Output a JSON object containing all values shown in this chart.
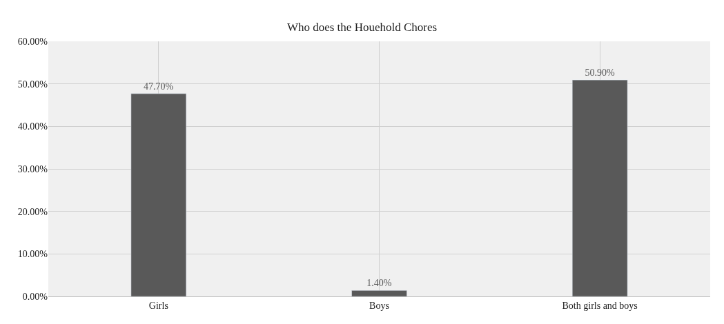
{
  "chart_data": {
    "type": "bar",
    "title": "Who does the Houehold Chores",
    "categories": [
      "Girls",
      "Boys",
      "Both girls and boys"
    ],
    "values": [
      47.7,
      1.4,
      50.9
    ],
    "value_labels": [
      "47.70%",
      "1.40%",
      "50.90%"
    ],
    "color": "#595959",
    "ylim": [
      0,
      60
    ],
    "yticks": [
      {
        "value": 0,
        "label": "0.00%"
      },
      {
        "value": 10,
        "label": "10.00%"
      },
      {
        "value": 20,
        "label": "20.00%"
      },
      {
        "value": 30,
        "label": "30.00%"
      },
      {
        "value": 40,
        "label": "40.00%"
      },
      {
        "value": 50,
        "label": "50.00%"
      },
      {
        "value": 60,
        "label": "60.00%"
      }
    ],
    "grid": true
  }
}
